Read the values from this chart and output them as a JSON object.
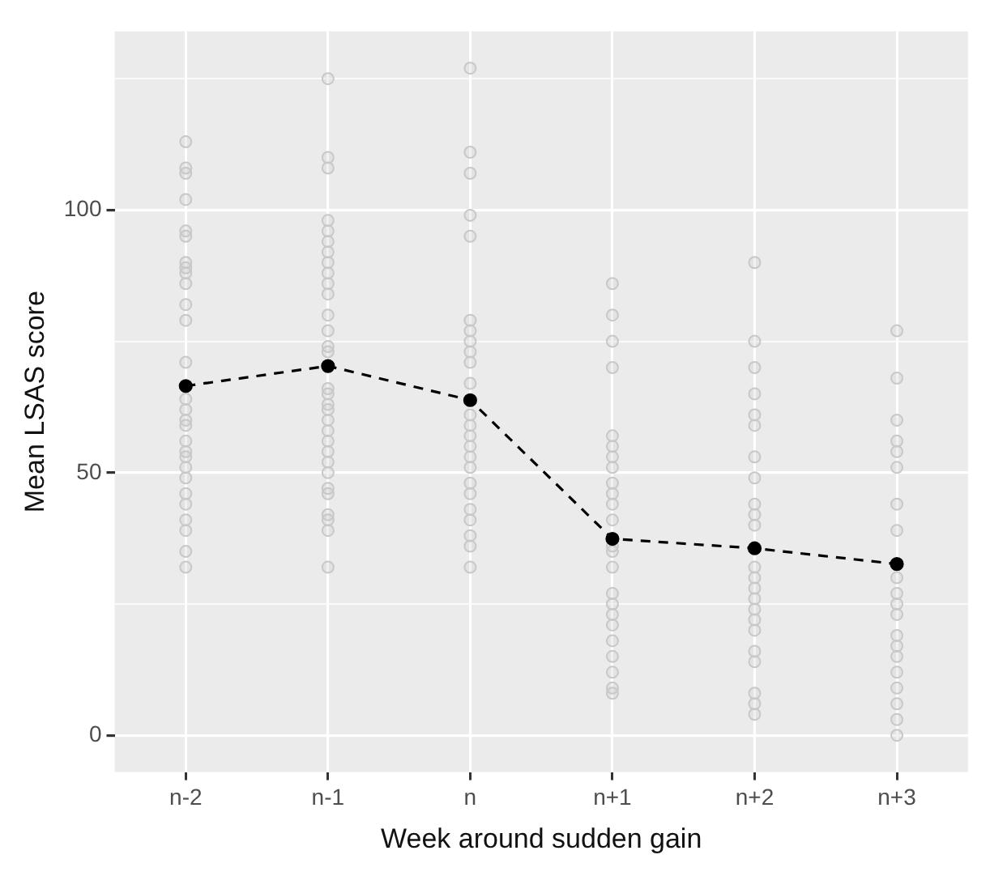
{
  "chart_data": {
    "type": "line",
    "xlabel": "Week around sudden gain",
    "ylabel": "Mean LSAS score",
    "categories": [
      "n-2",
      "n-1",
      "n",
      "n+1",
      "n+2",
      "n+3"
    ],
    "ylim": [
      -7,
      134
    ],
    "yticks": [
      0,
      {
        "value": 25,
        "label": null
      },
      50,
      {
        "value": 75,
        "label": null
      },
      100,
      {
        "value": 125,
        "label": null
      }
    ],
    "grid": true,
    "legend": false,
    "marker": "circle",
    "line_style": "dashed",
    "series": [
      {
        "type": "scatter",
        "color": "#c8c8c8",
        "x": [
          "n-2",
          "n-2",
          "n-2",
          "n-2",
          "n-2",
          "n-2",
          "n-2",
          "n-2",
          "n-2",
          "n-2",
          "n-2",
          "n-2",
          "n-2",
          "n-2",
          "n-2",
          "n-2",
          "n-2",
          "n-2",
          "n-2",
          "n-2",
          "n-2",
          "n-2",
          "n-2",
          "n-2",
          "n-2",
          "n-2",
          "n-2",
          "n-2",
          "n-1",
          "n-1",
          "n-1",
          "n-1",
          "n-1",
          "n-1",
          "n-1",
          "n-1",
          "n-1",
          "n-1",
          "n-1",
          "n-1",
          "n-1",
          "n-1",
          "n-1",
          "n-1",
          "n-1",
          "n-1",
          "n-1",
          "n-1",
          "n-1",
          "n-1",
          "n-1",
          "n-1",
          "n-1",
          "n-1",
          "n-1",
          "n-1",
          "n-1",
          "n-1",
          "n-1",
          "n",
          "n",
          "n",
          "n",
          "n",
          "n",
          "n",
          "n",
          "n",
          "n",
          "n",
          "n",
          "n",
          "n",
          "n",
          "n",
          "n",
          "n",
          "n",
          "n",
          "n",
          "n",
          "n",
          "n",
          "n+1",
          "n+1",
          "n+1",
          "n+1",
          "n+1",
          "n+1",
          "n+1",
          "n+1",
          "n+1",
          "n+1",
          "n+1",
          "n+1",
          "n+1",
          "n+1",
          "n+1",
          "n+1",
          "n+1",
          "n+1",
          "n+1",
          "n+1",
          "n+1",
          "n+1",
          "n+1",
          "n+1",
          "n+2",
          "n+2",
          "n+2",
          "n+2",
          "n+2",
          "n+2",
          "n+2",
          "n+2",
          "n+2",
          "n+2",
          "n+2",
          "n+2",
          "n+2",
          "n+2",
          "n+2",
          "n+2",
          "n+2",
          "n+2",
          "n+2",
          "n+2",
          "n+2",
          "n+2",
          "n+2",
          "n+3",
          "n+3",
          "n+3",
          "n+3",
          "n+3",
          "n+3",
          "n+3",
          "n+3",
          "n+3",
          "n+3",
          "n+3",
          "n+3",
          "n+3",
          "n+3",
          "n+3",
          "n+3",
          "n+3",
          "n+3",
          "n+3",
          "n+3"
        ],
        "values": [
          113,
          108,
          107,
          102,
          96,
          95,
          90,
          89,
          88,
          86,
          82,
          79,
          71,
          64,
          62,
          60,
          59,
          56,
          54,
          53,
          51,
          49,
          46,
          44,
          41,
          39,
          35,
          32,
          125,
          110,
          108,
          98,
          96,
          94,
          92,
          90,
          88,
          86,
          84,
          80,
          77,
          74,
          73,
          66,
          65,
          63,
          62,
          60,
          58,
          56,
          54,
          52,
          50,
          47,
          46,
          42,
          41,
          39,
          32,
          127,
          111,
          107,
          99,
          95,
          79,
          77,
          75,
          73,
          71,
          67,
          61,
          59,
          57,
          55,
          53,
          51,
          48,
          46,
          43,
          41,
          38,
          36,
          32,
          86,
          80,
          75,
          70,
          57,
          55,
          53,
          51,
          48,
          46,
          44,
          41,
          36,
          35,
          32,
          27,
          25,
          23,
          21,
          18,
          15,
          12,
          9,
          8,
          90,
          75,
          70,
          65,
          61,
          59,
          53,
          49,
          44,
          42,
          40,
          32,
          30,
          28,
          26,
          24,
          22,
          20,
          16,
          14,
          8,
          6,
          4,
          77,
          68,
          60,
          56,
          54,
          51,
          44,
          39,
          30,
          27,
          25,
          23,
          19,
          17,
          15,
          12,
          9,
          6,
          3,
          0
        ]
      },
      {
        "type": "line",
        "color": "#000000",
        "values": [
          66.5,
          70.3,
          63.8,
          37.4,
          35.6,
          32.6
        ]
      }
    ]
  }
}
